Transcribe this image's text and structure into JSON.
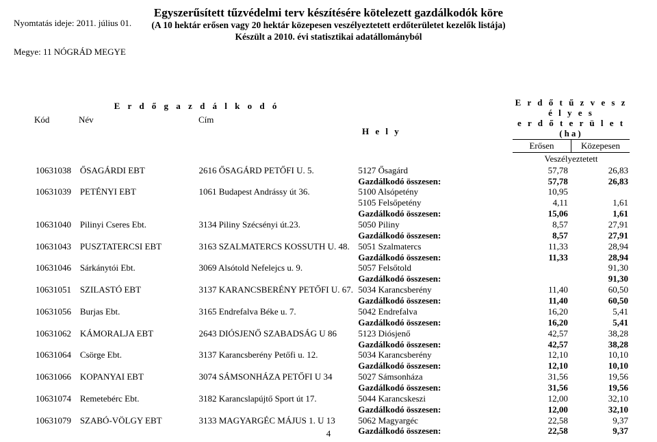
{
  "header": {
    "title": "Egyszerűsített tűzvédelmi terv készítésére kötelezett gazdálkodók köre",
    "subtitle": "(A 10 hektár erősen vagy 20 hektár közepesen veszélyeztetett erdőterületet kezelők listája)",
    "made": "Készült a 2010. évi statisztikai adatállományból",
    "print_date": "Nyomtatás ideje: 2011. július 01.",
    "county": "Megye: 11 NÓGRÁD MEGYE"
  },
  "columns": {
    "gazd_title": "E r d ő g a z d á l k o d ó",
    "kod": "Kód",
    "nev": "Név",
    "cim": "Cím",
    "hely": "H e l y",
    "right_title1": "E r d ő t ű z v e s z é l y e s",
    "right_title2": "e r d ő t e r ü l e t  (ha)",
    "erosen": "Erősen",
    "kozepesen": "Közepesen",
    "vesz": "Veszélyeztetett"
  },
  "summary_label": "Gazdálkodó összesen:",
  "page_number": "4",
  "rows": [
    {
      "kod": "10631038",
      "nev": "ŐSAGÁRDI EBT",
      "cim": "2616 ŐSAGÁRD PETŐFI U. 5.",
      "hely": "5127 Ősagárd",
      "v1": "57,78",
      "v2": "26,83",
      "sum1": "57,78",
      "sum2": "26,83"
    },
    {
      "kod": "10631039",
      "nev": "PETÉNYI EBT",
      "cim": "1061 Budapest Andrássy út 36.",
      "lines": [
        {
          "hely": "5100 Alsópetény",
          "v1": "10,95",
          "v2": ""
        },
        {
          "hely": "5105 Felsőpetény",
          "v1": "4,11",
          "v2": "1,61"
        }
      ],
      "sum1": "15,06",
      "sum2": "1,61"
    },
    {
      "kod": "10631040",
      "nev": "Pilinyi Cseres Ebt.",
      "cim": "3134 Piliny Szécsényi út.23.",
      "hely": "5050 Piliny",
      "v1": "8,57",
      "v2": "27,91",
      "sum1": "8,57",
      "sum2": "27,91"
    },
    {
      "kod": "10631043",
      "nev": "PUSZTATERCSI EBT",
      "cim": "3163 SZALMATERCS KOSSUTH U. 48.",
      "hely": "5051 Szalmatercs",
      "v1": "11,33",
      "v2": "28,94",
      "sum1": "11,33",
      "sum2": "28,94"
    },
    {
      "kod": "10631046",
      "nev": "Sárkánytói Ebt.",
      "cim": "3069 Alsótold Nefelejcs u. 9.",
      "hely": "5057 Felsőtold",
      "v1": "",
      "v2": "91,30",
      "sum1": "",
      "sum2": "91,30"
    },
    {
      "kod": "10631051",
      "nev": "SZILASTÓ EBT",
      "cim": "3137 KARANCSBERÉNY PETŐFI U. 67.",
      "hely": "5034 Karancsberény",
      "v1": "11,40",
      "v2": "60,50",
      "sum1": "11,40",
      "sum2": "60,50"
    },
    {
      "kod": "10631056",
      "nev": "Burjas Ebt.",
      "cim": "3165 Endrefalva Béke u. 7.",
      "hely": "5042 Endrefalva",
      "v1": "16,20",
      "v2": "5,41",
      "sum1": "16,20",
      "sum2": "5,41"
    },
    {
      "kod": "10631062",
      "nev": "KÁMORALJA EBT",
      "cim": "2643 DIÓSJENŐ SZABADSÁG U 86",
      "hely": "5123 Diósjenő",
      "v1": "42,57",
      "v2": "38,28",
      "sum1": "42,57",
      "sum2": "38,28"
    },
    {
      "kod": "10631064",
      "nev": "Csörge Ebt.",
      "cim": "3137 Karancsberény Petőfi u. 12.",
      "hely": "5034 Karancsberény",
      "v1": "12,10",
      "v2": "10,10",
      "sum1": "12,10",
      "sum2": "10,10"
    },
    {
      "kod": "10631066",
      "nev": "KOPANYAI EBT",
      "cim": "3074 SÁMSONHÁZA PETŐFI U 34",
      "hely": "5027 Sámsonháza",
      "v1": "31,56",
      "v2": "19,56",
      "sum1": "31,56",
      "sum2": "19,56"
    },
    {
      "kod": "10631074",
      "nev": "Remetebérc Ebt.",
      "cim": "3182 Karancslapújtő Sport út 17.",
      "hely": "5044 Karancskeszi",
      "v1": "12,00",
      "v2": "32,10",
      "sum1": "12,00",
      "sum2": "32,10"
    },
    {
      "kod": "10631079",
      "nev": "SZABÓ-VÖLGY EBT",
      "cim": "3133 MAGYARGÉC MÁJUS 1. U 13",
      "hely": "5062 Magyargéc",
      "v1": "22,58",
      "v2": "9,37",
      "sum1": "22,58",
      "sum2": "9,37"
    }
  ]
}
